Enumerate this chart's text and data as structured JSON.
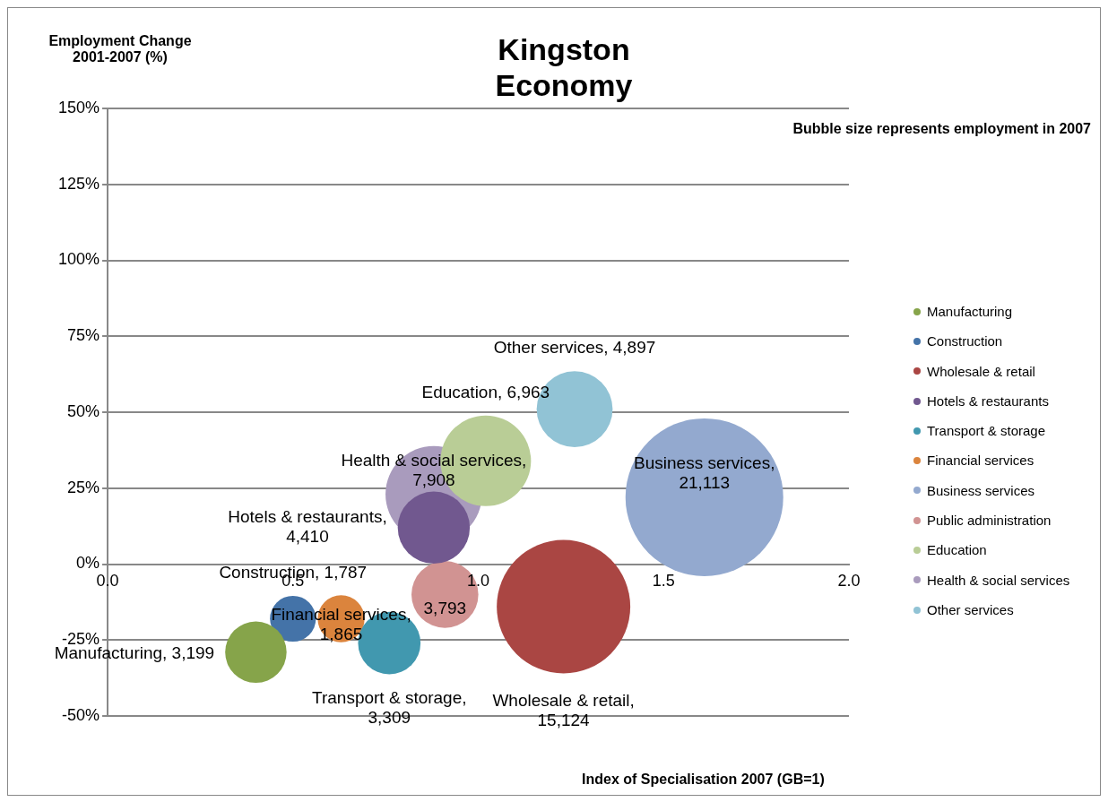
{
  "chart_data": {
    "type": "bubble",
    "title": "Kingston Economy",
    "ylabel": "Employment Change 2001-2007 (%)",
    "xlabel": "Index of Specialisation 2007 (GB=1)",
    "annotations": [
      "Bubble size represents employment in 2007"
    ],
    "xlim": [
      0,
      2
    ],
    "xticks": [
      {
        "value": 0,
        "label": "0.0"
      },
      {
        "value": 0.5,
        "label": "0.5"
      },
      {
        "value": 1,
        "label": "1.0"
      },
      {
        "value": 1.5,
        "label": "1.5"
      },
      {
        "value": 2,
        "label": "2.0"
      }
    ],
    "ylim": [
      -50,
      150
    ],
    "yticks": [
      {
        "value": -50,
        "label": "-50%"
      },
      {
        "value": -25,
        "label": "-25%"
      },
      {
        "value": 0,
        "label": "0%"
      },
      {
        "value": 25,
        "label": "25%"
      },
      {
        "value": 50,
        "label": "50%"
      },
      {
        "value": 75,
        "label": "75%"
      },
      {
        "value": 100,
        "label": "100%"
      },
      {
        "value": 125,
        "label": "125%"
      },
      {
        "value": 150,
        "label": "150%"
      }
    ],
    "grid": "y",
    "legend": "right",
    "series": [
      {
        "name": "Manufacturing",
        "color": "#86a44a",
        "x": [
          0.4
        ],
        "values": [
          -29
        ],
        "sizes": [
          3199
        ],
        "value_labels": [
          "Manufacturing, 3,199"
        ]
      },
      {
        "name": "Construction",
        "color": "#4473a8",
        "x": [
          0.5
        ],
        "values": [
          -18
        ],
        "sizes": [
          1787
        ],
        "value_labels": [
          "Construction, 1,787"
        ]
      },
      {
        "name": "Wholesale & retail",
        "color": "#aa4643",
        "x": [
          1.23
        ],
        "values": [
          -14
        ],
        "sizes": [
          15124
        ],
        "value_labels": [
          "Wholesale & retail, 15,124"
        ]
      },
      {
        "name": "Hotels & restaurants",
        "color": "#71588f",
        "x": [
          0.88
        ],
        "values": [
          12
        ],
        "sizes": [
          4410
        ],
        "value_labels": [
          "Hotels & restaurants, 4,410"
        ]
      },
      {
        "name": "Transport & storage",
        "color": "#4198af",
        "x": [
          0.76
        ],
        "values": [
          -26
        ],
        "sizes": [
          3309
        ],
        "value_labels": [
          "Transport & storage, 3,309"
        ]
      },
      {
        "name": "Financial services",
        "color": "#db843d",
        "x": [
          0.63
        ],
        "values": [
          -18
        ],
        "sizes": [
          1865
        ],
        "value_labels": [
          "Financial services, 1,865"
        ]
      },
      {
        "name": "Business services",
        "color": "#93a9cf",
        "x": [
          1.61
        ],
        "values": [
          22
        ],
        "sizes": [
          21113
        ],
        "value_labels": [
          "Business services, 21,113"
        ]
      },
      {
        "name": "Public administration",
        "color": "#d19392",
        "x": [
          0.91
        ],
        "values": [
          -10
        ],
        "sizes": [
          3793
        ],
        "value_labels": [
          "3,793"
        ]
      },
      {
        "name": "Education",
        "color": "#b9cd96",
        "x": [
          1.02
        ],
        "values": [
          34
        ],
        "sizes": [
          6963
        ],
        "value_labels": [
          "Education, 6,963"
        ]
      },
      {
        "name": "Health & social services",
        "color": "#a99bbd",
        "x": [
          0.88
        ],
        "values": [
          23
        ],
        "sizes": [
          7908
        ],
        "value_labels": [
          "Health & social services, 7,908"
        ]
      },
      {
        "name": "Other services",
        "color": "#91c3d5",
        "x": [
          1.26
        ],
        "values": [
          51
        ],
        "sizes": [
          4897
        ],
        "value_labels": [
          "Other services, 4,897"
        ]
      }
    ]
  }
}
